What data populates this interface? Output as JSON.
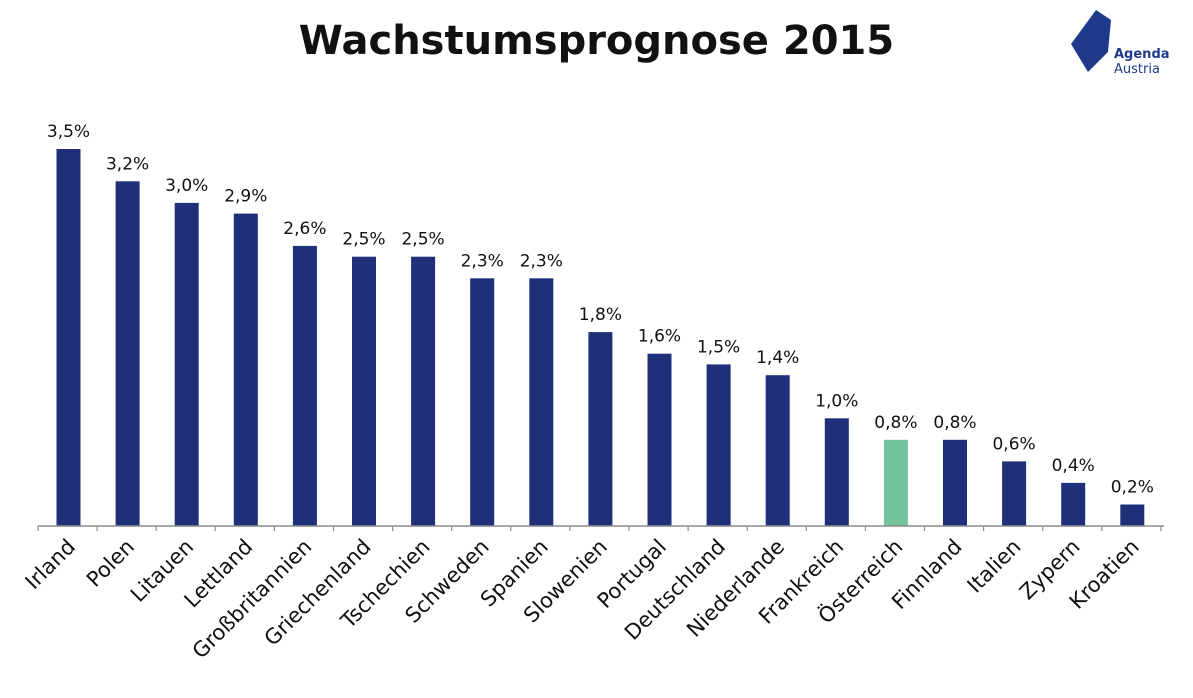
{
  "title": "Wachstumsprognose 2015",
  "logo": {
    "line1": "Agenda",
    "line2": "Austria",
    "color": "#1f3a8a"
  },
  "colors": {
    "bar": "#1f2f7a",
    "highlight": "#73c49d",
    "axis": "#8c8c8c"
  },
  "chart_data": {
    "type": "bar",
    "title": "Wachstumsprognose 2015",
    "xlabel": "",
    "ylabel": "",
    "ylim": [
      0,
      3.5
    ],
    "grid": false,
    "categories": [
      "Irland",
      "Polen",
      "Litauen",
      "Lettland",
      "Großbritannien",
      "Griechenland",
      "Tschechien",
      "Schweden",
      "Spanien",
      "Slowenien",
      "Portugal",
      "Deutschland",
      "Niederlande",
      "Frankreich",
      "Österreich",
      "Finnland",
      "Italien",
      "Zypern",
      "Kroatien"
    ],
    "values": [
      3.5,
      3.2,
      3.0,
      2.9,
      2.6,
      2.5,
      2.5,
      2.3,
      2.3,
      1.8,
      1.6,
      1.5,
      1.4,
      1.0,
      0.8,
      0.8,
      0.6,
      0.4,
      0.2
    ],
    "data_labels": [
      "3,5%",
      "3,2%",
      "3,0%",
      "2,9%",
      "2,6%",
      "2,5%",
      "2,5%",
      "2,3%",
      "2,3%",
      "1,8%",
      "1,6%",
      "1,5%",
      "1,4%",
      "1,0%",
      "0,8%",
      "0,8%",
      "0,6%",
      "0,4%",
      "0,2%"
    ],
    "highlight_category": "Österreich"
  }
}
